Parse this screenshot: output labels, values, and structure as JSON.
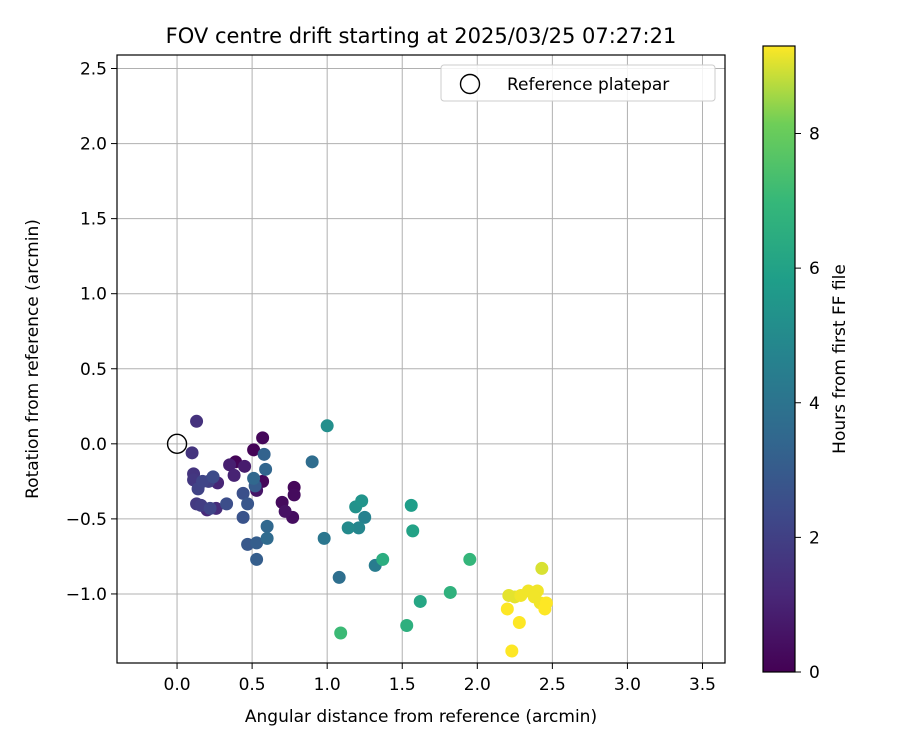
{
  "chart_data": {
    "type": "scatter",
    "title": "FOV centre drift starting at 2025/03/25 07:27:21",
    "xlabel": "Angular distance from reference (arcmin)",
    "ylabel": "Rotation from reference (arcmin)",
    "xlim": [
      -0.4,
      3.65
    ],
    "ylim": [
      -1.46,
      2.59
    ],
    "xticks": [
      "0.0",
      "0.5",
      "1.0",
      "1.5",
      "2.0",
      "2.5",
      "3.0",
      "3.5"
    ],
    "yticks": [
      "−1.0",
      "−0.5",
      "0.0",
      "0.5",
      "1.0",
      "1.5",
      "2.0",
      "2.5"
    ],
    "grid": true,
    "legend": {
      "position": "top-right",
      "entries": [
        {
          "label": "Reference platepar",
          "marker": "open-circle"
        }
      ]
    },
    "reference_point": {
      "x": 0.0,
      "y": 0.0
    },
    "colorbar": {
      "label": "Hours from first FF file",
      "colormap": "viridis",
      "range": [
        0,
        9.3
      ],
      "ticks": [
        "0",
        "2",
        "4",
        "6",
        "8"
      ]
    },
    "series": [
      {
        "points": [
          {
            "x": 0.39,
            "y": -0.12,
            "c": 0.1
          },
          {
            "x": 0.51,
            "y": -0.04,
            "c": 0.1
          },
          {
            "x": 0.57,
            "y": 0.04,
            "c": 0.2
          },
          {
            "x": 0.57,
            "y": -0.25,
            "c": 0.2
          },
          {
            "x": 0.78,
            "y": -0.29,
            "c": 0.2
          },
          {
            "x": 0.78,
            "y": -0.34,
            "c": 0.3
          },
          {
            "x": 0.7,
            "y": -0.39,
            "c": 0.3
          },
          {
            "x": 0.77,
            "y": -0.49,
            "c": 0.4
          },
          {
            "x": 0.72,
            "y": -0.45,
            "c": 0.5
          },
          {
            "x": 0.53,
            "y": -0.31,
            "c": 0.6
          },
          {
            "x": 0.45,
            "y": -0.15,
            "c": 0.8
          },
          {
            "x": 0.35,
            "y": -0.14,
            "c": 0.9
          },
          {
            "x": 0.38,
            "y": -0.21,
            "c": 1.0
          },
          {
            "x": 0.27,
            "y": -0.26,
            "c": 1.1
          },
          {
            "x": 0.2,
            "y": -0.44,
            "c": 1.2
          },
          {
            "x": 0.26,
            "y": -0.43,
            "c": 1.3
          },
          {
            "x": 0.13,
            "y": 0.15,
            "c": 1.5
          },
          {
            "x": 0.1,
            "y": -0.06,
            "c": 1.6
          },
          {
            "x": 0.11,
            "y": -0.2,
            "c": 1.6
          },
          {
            "x": 0.11,
            "y": -0.24,
            "c": 1.7
          },
          {
            "x": 0.13,
            "y": -0.4,
            "c": 1.8
          },
          {
            "x": 0.16,
            "y": -0.41,
            "c": 1.9
          },
          {
            "x": 0.21,
            "y": -0.25,
            "c": 2.0
          },
          {
            "x": 0.14,
            "y": -0.3,
            "c": 2.1
          },
          {
            "x": 0.17,
            "y": -0.25,
            "c": 2.2
          },
          {
            "x": 0.22,
            "y": -0.43,
            "c": 2.2
          },
          {
            "x": 0.24,
            "y": -0.22,
            "c": 2.4
          },
          {
            "x": 0.33,
            "y": -0.4,
            "c": 2.5
          },
          {
            "x": 0.44,
            "y": -0.33,
            "c": 2.6
          },
          {
            "x": 0.44,
            "y": -0.49,
            "c": 2.7
          },
          {
            "x": 0.47,
            "y": -0.4,
            "c": 2.8
          },
          {
            "x": 0.47,
            "y": -0.67,
            "c": 2.9
          },
          {
            "x": 0.52,
            "y": -0.28,
            "c": 3.0
          },
          {
            "x": 0.53,
            "y": -0.66,
            "c": 3.1
          },
          {
            "x": 0.53,
            "y": -0.77,
            "c": 3.1
          },
          {
            "x": 0.58,
            "y": -0.07,
            "c": 3.3
          },
          {
            "x": 0.59,
            "y": -0.17,
            "c": 3.4
          },
          {
            "x": 0.51,
            "y": -0.23,
            "c": 3.5
          },
          {
            "x": 0.6,
            "y": -0.55,
            "c": 3.5
          },
          {
            "x": 0.6,
            "y": -0.63,
            "c": 3.6
          },
          {
            "x": 0.9,
            "y": -0.12,
            "c": 3.7
          },
          {
            "x": 1.08,
            "y": -0.89,
            "c": 3.8
          },
          {
            "x": 0.98,
            "y": -0.63,
            "c": 4.1
          },
          {
            "x": 1.32,
            "y": -0.81,
            "c": 4.4
          },
          {
            "x": 1.25,
            "y": -0.49,
            "c": 4.6
          },
          {
            "x": 1.21,
            "y": -0.56,
            "c": 4.8
          },
          {
            "x": 1.14,
            "y": -0.56,
            "c": 5.0
          },
          {
            "x": 1.0,
            "y": 0.12,
            "c": 5.2
          },
          {
            "x": 1.19,
            "y": -0.42,
            "c": 5.3
          },
          {
            "x": 1.23,
            "y": -0.38,
            "c": 5.4
          },
          {
            "x": 1.56,
            "y": -0.41,
            "c": 5.8
          },
          {
            "x": 1.57,
            "y": -0.58,
            "c": 6.0
          },
          {
            "x": 1.62,
            "y": -1.05,
            "c": 6.2
          },
          {
            "x": 1.37,
            "y": -0.77,
            "c": 6.5
          },
          {
            "x": 1.53,
            "y": -1.21,
            "c": 6.6
          },
          {
            "x": 1.82,
            "y": -0.99,
            "c": 6.7
          },
          {
            "x": 1.95,
            "y": -0.77,
            "c": 6.9
          },
          {
            "x": 1.09,
            "y": -1.26,
            "c": 7.1
          },
          {
            "x": 2.43,
            "y": -0.83,
            "c": 9.0
          },
          {
            "x": 2.21,
            "y": -1.01,
            "c": 9.1
          },
          {
            "x": 2.25,
            "y": -1.02,
            "c": 9.1
          },
          {
            "x": 2.29,
            "y": -1.01,
            "c": 9.2
          },
          {
            "x": 2.34,
            "y": -0.98,
            "c": 9.2
          },
          {
            "x": 2.4,
            "y": -0.98,
            "c": 9.2
          },
          {
            "x": 2.38,
            "y": -1.02,
            "c": 9.2
          },
          {
            "x": 2.42,
            "y": -1.06,
            "c": 9.2
          },
          {
            "x": 2.46,
            "y": -1.06,
            "c": 9.3
          },
          {
            "x": 2.45,
            "y": -1.1,
            "c": 9.3
          },
          {
            "x": 2.2,
            "y": -1.1,
            "c": 9.3
          },
          {
            "x": 2.28,
            "y": -1.19,
            "c": 9.3
          },
          {
            "x": 2.23,
            "y": -1.38,
            "c": 9.3
          }
        ]
      }
    ]
  }
}
